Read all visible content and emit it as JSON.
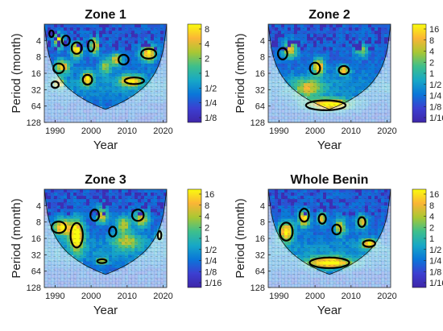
{
  "chart_data": [
    {
      "type": "heatmap",
      "title": "Zone 1",
      "xlabel": "Year",
      "ylabel": "Period (month)",
      "x_ticks": [
        "1990",
        "2000",
        "2010",
        "2020"
      ],
      "y_ticks": [
        "4",
        "8",
        "16",
        "32",
        "64",
        "128"
      ],
      "xlim": [
        1987,
        2021
      ],
      "ylim": [
        2,
        128
      ],
      "y_scale": "log2",
      "colorbar_ticks": [
        "8",
        "4",
        "2",
        "1",
        "1/2",
        "1/4",
        "1/8"
      ],
      "colormap": [
        "#f9fb0e",
        "#fbb536",
        "#3ebf8b",
        "#17a8c6",
        "#0a76d9",
        "#3c3fd1",
        "#3e26a8"
      ],
      "legend": "none"
    },
    {
      "type": "heatmap",
      "title": "Zone 2",
      "xlabel": "Year",
      "ylabel": "Period (month)",
      "x_ticks": [
        "1990",
        "2000",
        "2010",
        "2020"
      ],
      "y_ticks": [
        "4",
        "8",
        "16",
        "32",
        "64",
        "128"
      ],
      "xlim": [
        1987,
        2021
      ],
      "ylim": [
        2,
        128
      ],
      "y_scale": "log2",
      "colorbar_ticks": [
        "16",
        "8",
        "4",
        "2",
        "1",
        "1/2",
        "1/4",
        "1/8",
        "1/16"
      ],
      "colormap": [
        "#f9fb0e",
        "#fbb536",
        "#3ebf8b",
        "#17a8c6",
        "#0a76d9",
        "#3c3fd1",
        "#3e26a8"
      ],
      "legend": "none"
    },
    {
      "type": "heatmap",
      "title": "Zone 3",
      "xlabel": "Year",
      "ylabel": "Period (month)",
      "x_ticks": [
        "1990",
        "2000",
        "2010",
        "2020"
      ],
      "y_ticks": [
        "4",
        "8",
        "16",
        "32",
        "64",
        "128"
      ],
      "xlim": [
        1987,
        2021
      ],
      "ylim": [
        2,
        128
      ],
      "y_scale": "log2",
      "colorbar_ticks": [
        "16",
        "8",
        "4",
        "2",
        "1",
        "1/2",
        "1/4",
        "1/8",
        "1/16"
      ],
      "colormap": [
        "#f9fb0e",
        "#fbb536",
        "#3ebf8b",
        "#17a8c6",
        "#0a76d9",
        "#3c3fd1",
        "#3e26a8"
      ],
      "legend": "none"
    },
    {
      "type": "heatmap",
      "title": "Whole Benin",
      "xlabel": "Year",
      "ylabel": "Period (month)",
      "x_ticks": [
        "1990",
        "2000",
        "2010",
        "2020"
      ],
      "y_ticks": [
        "4",
        "8",
        "16",
        "32",
        "64",
        "128"
      ],
      "xlim": [
        1987,
        2021
      ],
      "ylim": [
        2,
        128
      ],
      "y_scale": "log2",
      "colorbar_ticks": [
        "16",
        "8",
        "4",
        "2",
        "1",
        "1/2",
        "1/4",
        "1/8",
        "1/16"
      ],
      "colormap": [
        "#f9fb0e",
        "#fbb536",
        "#3ebf8b",
        "#17a8c6",
        "#0a76d9",
        "#3c3fd1",
        "#3e26a8"
      ],
      "legend": "none"
    }
  ]
}
